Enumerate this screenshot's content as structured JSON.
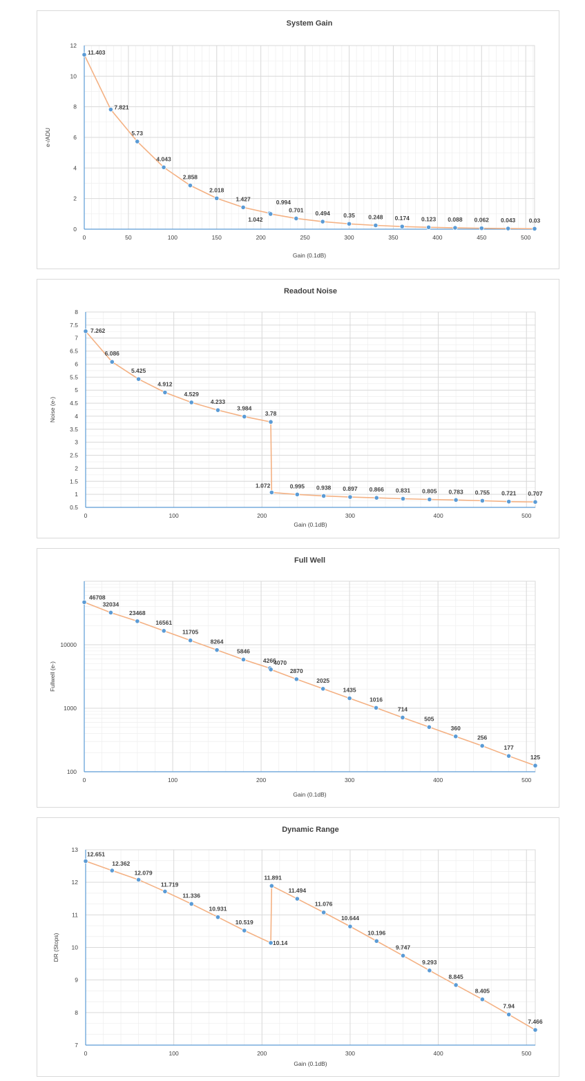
{
  "colors": {
    "line": "#f4b183",
    "marker": "#5b9bd5",
    "grid_major": "#d9d9d9",
    "grid_minor": "#eeeeee",
    "axis": "#5b9bd5"
  },
  "chart_data": [
    {
      "type": "line",
      "title": "System Gain",
      "xlabel": "Gain (0.1dB)",
      "ylabel": "e-/ADU",
      "xlim": [
        0,
        510
      ],
      "ylim": [
        0,
        12
      ],
      "xticks": [
        0,
        50,
        100,
        150,
        200,
        250,
        300,
        350,
        400,
        450,
        500
      ],
      "yticks": [
        0,
        2,
        4,
        6,
        8,
        10,
        12
      ],
      "yscale": "linear",
      "grid": true,
      "series": [
        {
          "x": [
            0,
            30,
            60,
            90,
            120,
            150,
            180,
            210,
            211,
            240,
            270,
            300,
            330,
            360,
            390,
            420,
            450,
            480,
            510
          ],
          "y": [
            11.403,
            7.821,
            5.73,
            4.043,
            2.858,
            2.018,
            1.427,
            1.042,
            0.994,
            0.701,
            0.494,
            0.35,
            0.248,
            0.174,
            0.123,
            0.088,
            0.062,
            0.043,
            0.03
          ],
          "labels": [
            "11.403",
            "7.821",
            "5.73",
            "4.043",
            "2.858",
            "2.018",
            "1.427",
            "1.042",
            "0.994",
            "0.701",
            "0.494",
            "0.35",
            "0.248",
            "0.174",
            "0.123",
            "0.088",
            "0.062",
            "0.043",
            "0.03"
          ]
        }
      ]
    },
    {
      "type": "line",
      "title": "Readout Noise",
      "xlabel": "Gain (0.1dB)",
      "ylabel": "Noise (e-)",
      "xlim": [
        0,
        510
      ],
      "ylim": [
        0.5,
        8
      ],
      "xticks": [
        0,
        100,
        200,
        300,
        400,
        500
      ],
      "yticks": [
        0.5,
        1,
        1.5,
        2,
        2.5,
        3,
        3.5,
        4,
        4.5,
        5,
        5.5,
        6,
        6.5,
        7,
        7.5,
        8
      ],
      "yscale": "linear",
      "grid": true,
      "series": [
        {
          "x": [
            0,
            30,
            60,
            90,
            120,
            150,
            180,
            210,
            211,
            240,
            270,
            300,
            330,
            360,
            390,
            420,
            450,
            480,
            510
          ],
          "y": [
            7.262,
            6.086,
            5.425,
            4.912,
            4.529,
            4.233,
            3.984,
            3.78,
            1.072,
            0.995,
            0.938,
            0.897,
            0.866,
            0.831,
            0.805,
            0.783,
            0.755,
            0.721,
            0.707
          ],
          "labels": [
            "7.262",
            "6.086",
            "5.425",
            "4.912",
            "4.529",
            "4.233",
            "3.984",
            "3.78",
            "1.072",
            "0.995",
            "0.938",
            "0.897",
            "0.866",
            "0.831",
            "0.805",
            "0.783",
            "0.755",
            "0.721",
            "0.707"
          ]
        }
      ]
    },
    {
      "type": "line",
      "title": "Full Well",
      "xlabel": "Gain (0.1dB)",
      "ylabel": "Fullwell (e-)",
      "xlim": [
        0,
        510
      ],
      "ylim": [
        100,
        100000
      ],
      "xticks": [
        0,
        100,
        200,
        300,
        400,
        500
      ],
      "yticks": [
        100,
        1000,
        10000
      ],
      "yscale": "log",
      "grid": true,
      "series": [
        {
          "x": [
            0,
            30,
            60,
            90,
            120,
            150,
            180,
            210,
            211,
            240,
            270,
            300,
            330,
            360,
            390,
            420,
            450,
            480,
            510
          ],
          "y": [
            46708,
            32034,
            23468,
            16561,
            11705,
            8264,
            5846,
            4266,
            4070,
            2870,
            2025,
            1435,
            1016,
            714,
            505,
            360,
            256,
            177,
            125
          ],
          "labels": [
            "46708",
            "32034",
            "23468",
            "16561",
            "11705",
            "8264",
            "5846",
            "4266",
            "4070",
            "2870",
            "2025",
            "1435",
            "1016",
            "714",
            "505",
            "360",
            "256",
            "177",
            "125"
          ]
        }
      ]
    },
    {
      "type": "line",
      "title": "Dynamic Range",
      "xlabel": "Gain (0.1dB)",
      "ylabel": "DR (Stops)",
      "xlim": [
        0,
        510
      ],
      "ylim": [
        7,
        13
      ],
      "xticks": [
        0,
        100,
        200,
        300,
        400,
        500
      ],
      "yticks": [
        7,
        8,
        9,
        10,
        11,
        12,
        13
      ],
      "yscale": "linear",
      "grid": true,
      "series": [
        {
          "x": [
            0,
            30,
            60,
            90,
            120,
            150,
            180,
            210,
            211,
            240,
            270,
            300,
            330,
            360,
            390,
            420,
            450,
            480,
            510
          ],
          "y": [
            12.651,
            12.362,
            12.079,
            11.719,
            11.336,
            10.931,
            10.519,
            10.14,
            11.891,
            11.494,
            11.076,
            10.644,
            10.196,
            9.747,
            9.293,
            8.845,
            8.405,
            7.94,
            7.466
          ],
          "labels": [
            "12.651",
            "12.362",
            "12.079",
            "11.719",
            "11.336",
            "10.931",
            "10.519",
            "10.14",
            "11.891",
            "11.494",
            "11.076",
            "10.644",
            "10.196",
            "9.747",
            "9.293",
            "8.845",
            "8.405",
            "7.94",
            "7.466"
          ]
        }
      ]
    }
  ]
}
